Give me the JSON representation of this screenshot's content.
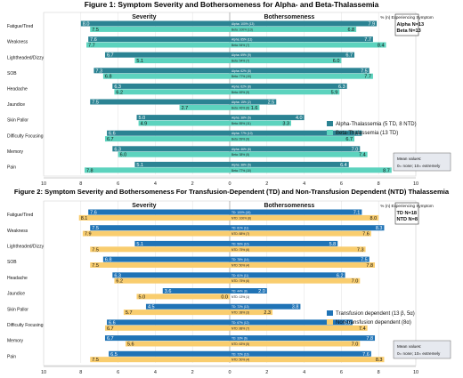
{
  "colors": {
    "alpha": "#2b8393",
    "beta": "#5cd3be",
    "td": "#1f73b6",
    "ntd": "#f9cd6e",
    "mean_box_bg": "#e6e9ef"
  },
  "chart_data": [
    {
      "type": "bar",
      "title": "Figure 1: Symptom Severity and Bothersomeness for Alpha- and Beta-Thalassemia",
      "left_header": "Severity",
      "right_header": "Bothersomeness",
      "xlim": [
        10,
        0,
        10
      ],
      "x_ticks": [
        "10",
        "8",
        "6",
        "4",
        "2",
        "0",
        "2",
        "4",
        "6",
        "8",
        "10"
      ],
      "categories": [
        "Fatigue/Tired",
        "Weakness",
        "Lightheaded/Dizzy",
        "SOB",
        "Headache",
        "Jaundice",
        "Skin Pallor",
        "Difficulty Focusing",
        "Memory",
        "Pain"
      ],
      "series": [
        {
          "name": "Alpha-Thalassemia (5 TD, 8 NTD)",
          "color_key": "alpha",
          "severity": [
            8.0,
            7.6,
            6.7,
            7.3,
            6.3,
            7.5,
            5.0,
            6.6,
            6.3,
            5.1
          ],
          "bothersomeness": [
            7.9,
            7.7,
            6.7,
            7.5,
            6.3,
            2.5,
            4.0,
            7.1,
            7.0,
            6.4
          ],
          "pct_labels": [
            "Alpha: 100% (13)",
            "Alpha: 85% (11)",
            "Alpha: 69% (9)",
            "Alpha: 62% (8)",
            "Alpha: 62% (8)",
            "Alpha: 15% (2)",
            "Alpha: 38% (5)",
            "Alpha: 77% (10)",
            "Alpha: 46% (6)",
            "Alpha: 38% (5)"
          ]
        },
        {
          "name": "Beta-Thalassemia (13 TD)",
          "color_key": "beta",
          "severity": [
            7.5,
            7.7,
            5.1,
            6.8,
            6.2,
            2.7,
            4.9,
            6.7,
            6.0,
            7.8
          ],
          "bothersomeness": [
            6.8,
            8.4,
            6.0,
            7.7,
            5.9,
            1.6,
            3.3,
            6.7,
            7.4,
            8.7
          ],
          "pct_labels": [
            "Beta: 100% (13)",
            "Beta: 54% (7)",
            "Beta: 54% (7)",
            "Beta: 77% (10)",
            "Beta: 69% (9)",
            "Beta: 46% (6)",
            "Beta: 85% (11)",
            "Beta: 69% (9)",
            "Beta: 38% (5)",
            "Beta: 77% (10)"
          ]
        }
      ],
      "legend_position": "right",
      "n_box": {
        "header": "% (n) Experiencing Symptom",
        "lines": [
          "Alpha N=13",
          "Beta  N=13"
        ]
      },
      "mean_box": {
        "title": "Mean values:",
        "text": "0= none; 10= extremely"
      }
    },
    {
      "type": "bar",
      "title": "Figure 2: Symptom Severity and Bothersomeness For Transfusion-Dependent (TD) and Non-Transfusion Dependent (NTD) Thalassemia",
      "left_header": "Severity",
      "right_header": "Bothersomeness",
      "xlim": [
        10,
        0,
        10
      ],
      "x_ticks": [
        "10",
        "8",
        "6",
        "4",
        "2",
        "0",
        "2",
        "4",
        "6",
        "8",
        "10"
      ],
      "categories": [
        "Fatigue/Tired",
        "Weakness",
        "Lightheaded/Dizzy",
        "SOB",
        "Headache",
        "Jaundice",
        "Skin Pallor",
        "Difficulty Focusing",
        "Memory",
        "Pain"
      ],
      "series": [
        {
          "name": "Transfusion dependent (13 β, 5α)",
          "color_key": "td",
          "severity": [
            7.6,
            7.5,
            5.1,
            6.8,
            6.3,
            3.6,
            4.5,
            6.6,
            6.7,
            6.5
          ],
          "bothersomeness": [
            7.1,
            8.3,
            5.8,
            7.5,
            6.2,
            2.0,
            3.8,
            6.6,
            7.8,
            7.6
          ],
          "pct_labels": [
            "TD: 100% (18)",
            "TD: 61% (11)",
            "TD: 56% (10)",
            "TD: 78% (14)",
            "TD: 61% (11)",
            "TD: 44% (8)",
            "TD: 72% (13)",
            "TD: 67% (12)",
            "TD: 33% (6)",
            "TD: 72% (13)"
          ]
        },
        {
          "name": "Non-transfusion dependent (8α)",
          "color_key": "ntd",
          "severity": [
            8.1,
            7.9,
            7.5,
            7.5,
            6.2,
            5.0,
            5.7,
            6.7,
            5.6,
            7.5
          ],
          "bothersomeness": [
            8.0,
            7.6,
            7.3,
            7.8,
            7.0,
            0.0,
            2.3,
            7.4,
            7.0,
            8.3
          ],
          "pct_labels": [
            "NTD: 100% (8)",
            "NTD: 88% (7)",
            "NTD: 75% (6)",
            "NTD: 50% (4)",
            "NTD: 75% (6)",
            "NTD: 13% (1)",
            "NTD: 38% (3)",
            "NTD: 88% (7)",
            "NTD: 63% (5)",
            "NTD: 50% (4)"
          ]
        }
      ],
      "legend_position": "right",
      "n_box": {
        "header": "% (n) Experiencing Symptom",
        "lines": [
          "TD   N=18",
          "NTD  N=8"
        ]
      },
      "mean_box": {
        "title": "Mean values:",
        "text": "0= none; 10= extremely"
      }
    }
  ]
}
